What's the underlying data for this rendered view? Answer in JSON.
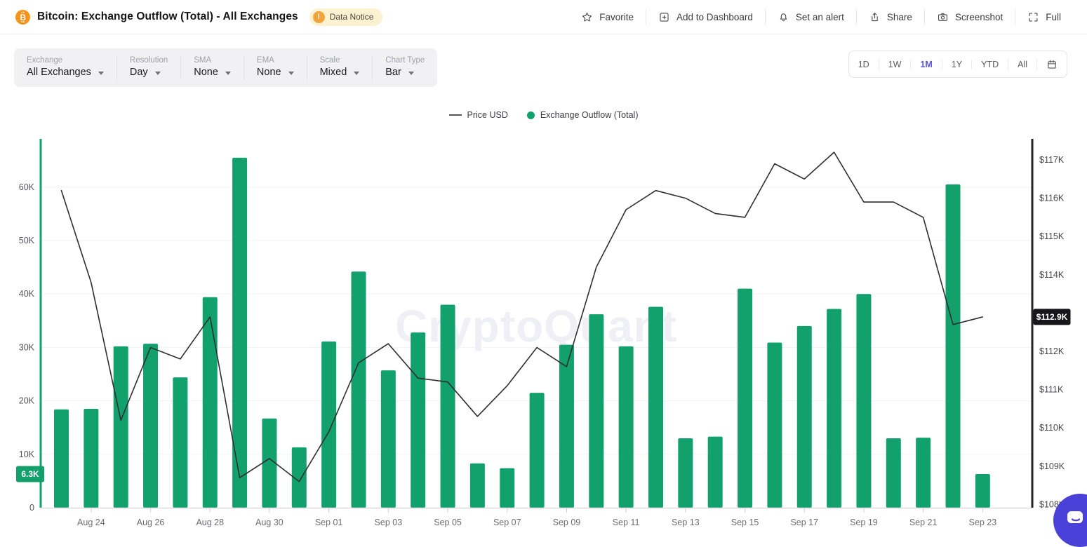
{
  "header": {
    "title": "Bitcoin: Exchange Outflow (Total) - All Exchanges",
    "data_notice_label": "Data Notice",
    "actions": [
      {
        "label": "Favorite",
        "icon": "star-icon"
      },
      {
        "label": "Add to Dashboard",
        "icon": "dashboard-add-icon"
      },
      {
        "label": "Set an alert",
        "icon": "bell-icon"
      },
      {
        "label": "Share",
        "icon": "share-icon"
      },
      {
        "label": "Screenshot",
        "icon": "camera-icon"
      },
      {
        "label": "Full",
        "icon": "fullscreen-icon"
      }
    ]
  },
  "toolbar": {
    "controls": [
      {
        "label": "Exchange",
        "value": "All Exchanges"
      },
      {
        "label": "Resolution",
        "value": "Day"
      },
      {
        "label": "SMA",
        "value": "None"
      },
      {
        "label": "EMA",
        "value": "None"
      },
      {
        "label": "Scale",
        "value": "Mixed"
      },
      {
        "label": "Chart Type",
        "value": "Bar"
      }
    ]
  },
  "range_selector": {
    "options": [
      "1D",
      "1W",
      "1M",
      "1Y",
      "YTD",
      "All"
    ],
    "active": "1M",
    "calendar_icon": "calendar-icon"
  },
  "legend": [
    {
      "label": "Price USD",
      "swatch": "line",
      "color": "#55555c"
    },
    {
      "label": "Exchange Outflow (Total)",
      "swatch": "dot",
      "color": "#12a06d"
    }
  ],
  "watermark": "CryptoQuant",
  "chart_data": {
    "type": "bar+line",
    "title": "Bitcoin: Exchange Outflow (Total) - All Exchanges",
    "legend_position": "top",
    "grid": "horizontal",
    "categories": [
      "Aug 23",
      "Aug 24",
      "Aug 25",
      "Aug 26",
      "Aug 27",
      "Aug 28",
      "Aug 29",
      "Aug 30",
      "Aug 31",
      "Sep 01",
      "Sep 02",
      "Sep 03",
      "Sep 04",
      "Sep 05",
      "Sep 06",
      "Sep 07",
      "Sep 08",
      "Sep 09",
      "Sep 10",
      "Sep 11",
      "Sep 12",
      "Sep 13",
      "Sep 14",
      "Sep 15",
      "Sep 16",
      "Sep 17",
      "Sep 18",
      "Sep 19",
      "Sep 20",
      "Sep 21",
      "Sep 22",
      "Sep 23"
    ],
    "x_tick_labels": [
      "Aug 24",
      "Aug 26",
      "Aug 28",
      "Aug 30",
      "Sep 01",
      "Sep 03",
      "Sep 05",
      "Sep 07",
      "Sep 09",
      "Sep 11",
      "Sep 13",
      "Sep 15",
      "Sep 17",
      "Sep 19",
      "Sep 21",
      "Sep 23"
    ],
    "series": [
      {
        "name": "Exchange Outflow (Total)",
        "type": "bar",
        "axis": "left",
        "unit": "K BTC",
        "color": "#12a06d",
        "values": [
          18.4,
          18.5,
          30.2,
          30.7,
          24.4,
          39.4,
          65.5,
          16.7,
          11.3,
          31.1,
          44.2,
          25.7,
          32.8,
          38.0,
          8.3,
          7.4,
          21.5,
          30.5,
          36.2,
          30.2,
          37.6,
          13.0,
          13.3,
          41.0,
          30.9,
          34.0,
          37.2,
          40.0,
          13.0,
          13.1,
          60.5,
          6.3
        ]
      },
      {
        "name": "Price USD",
        "type": "line",
        "axis": "right",
        "unit": "K USD",
        "color": "#2e2e33",
        "values": [
          116.2,
          113.8,
          110.2,
          112.1,
          111.8,
          112.9,
          108.7,
          109.2,
          108.6,
          109.9,
          111.7,
          112.2,
          111.3,
          111.2,
          110.3,
          111.1,
          112.1,
          111.6,
          114.2,
          115.7,
          116.2,
          116.0,
          115.6,
          115.5,
          116.9,
          116.5,
          117.2,
          115.9,
          115.9,
          115.5,
          112.7,
          112.9
        ]
      }
    ],
    "left_axis": {
      "tick_values": [
        0,
        10,
        20,
        30,
        40,
        50,
        60
      ],
      "tick_labels": [
        "0",
        "10K",
        "20K",
        "30K",
        "40K",
        "50K",
        "60K"
      ],
      "range": [
        0,
        69
      ],
      "latest_value_label": "6.3K",
      "latest_value": 6.3,
      "badge_color": "#12a06d"
    },
    "right_axis": {
      "tick_values": [
        108,
        109,
        110,
        111,
        112,
        114,
        115,
        116,
        117
      ],
      "tick_labels": [
        "$108K",
        "$109K",
        "$110K",
        "$111K",
        "$112K",
        "$114K",
        "$115K",
        "$116K",
        "$117K"
      ],
      "range": [
        107.8,
        117.6
      ],
      "latest_value_label": "$112.9K",
      "latest_value": 112.9,
      "badge_color": "#17171b"
    }
  }
}
